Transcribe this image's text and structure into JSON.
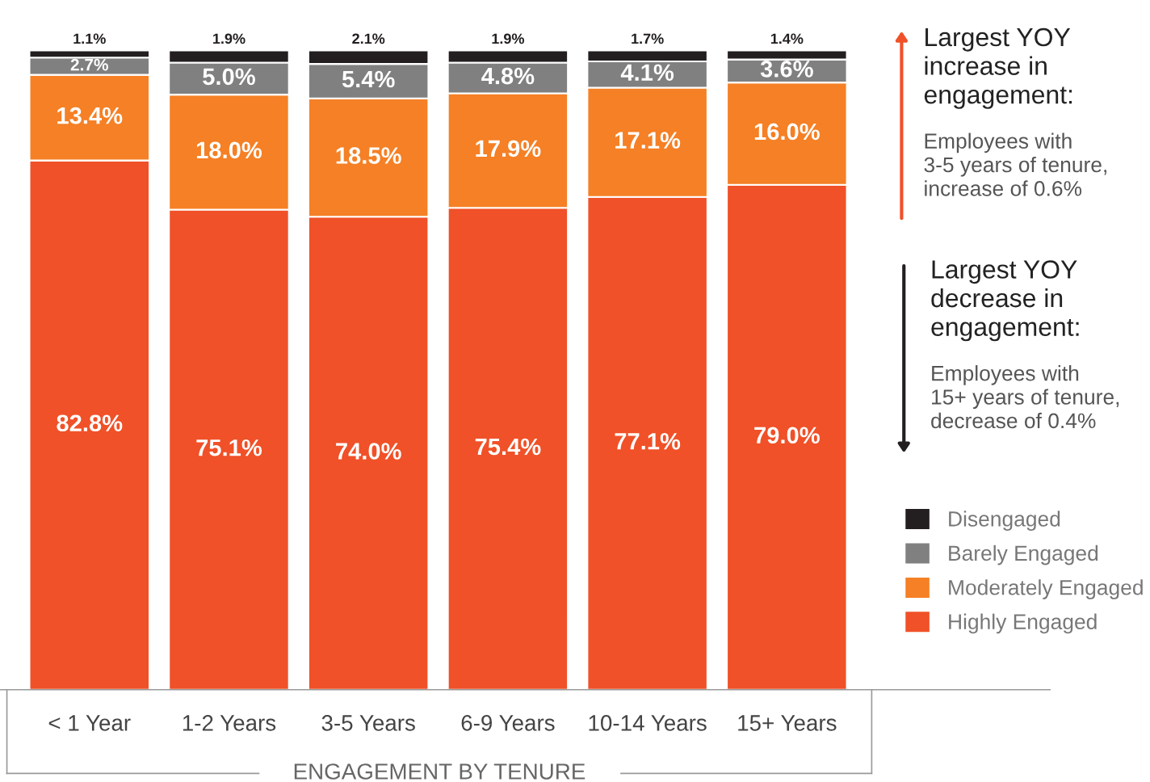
{
  "chart_data": {
    "type": "bar",
    "stacked": true,
    "xlabel": "ENGAGEMENT BY TENURE",
    "categories": [
      "< 1 Year",
      "1-2 Years",
      "3-5 Years",
      "6-9 Years",
      "10-14 Years",
      "15+ Years"
    ],
    "series": [
      {
        "name": "Highly Engaged",
        "color": "#f05128",
        "values": [
          82.8,
          75.1,
          74.0,
          75.4,
          77.1,
          79.0
        ],
        "value_labels": [
          "82.8%",
          "75.1%",
          "74.0%",
          "75.4%",
          "77.1%",
          "79.0%"
        ]
      },
      {
        "name": "Moderately Engaged",
        "color": "#f58025",
        "values": [
          13.4,
          18.0,
          18.5,
          17.9,
          17.1,
          16.0
        ],
        "value_labels": [
          "13.4%",
          "18.0%",
          "18.5%",
          "17.9%",
          "17.1%",
          "16.0%"
        ]
      },
      {
        "name": "Barely Engaged",
        "color": "#808080",
        "values": [
          2.7,
          5.0,
          5.4,
          4.8,
          4.1,
          3.6
        ],
        "value_labels": [
          "2.7%",
          "5.0%",
          "5.4%",
          "4.8%",
          "4.1%",
          "3.6%"
        ]
      },
      {
        "name": "Disengaged",
        "color": "#231f20",
        "values": [
          1.1,
          1.9,
          2.1,
          1.9,
          1.7,
          1.4
        ],
        "value_labels": [
          "1.1%",
          "1.9%",
          "2.1%",
          "1.9%",
          "1.7%",
          "1.4%"
        ]
      }
    ],
    "legend": "right",
    "annotations": [
      "Largest YOY\nincrease in\nengagement:",
      "Employees with\n3-5 years of tenure,\nincrease of 0.6%",
      "Largest YOY\ndecrease in\nengagement:",
      "Employees with\n15+ years of tenure,\ndecrease of 0.4%"
    ]
  }
}
